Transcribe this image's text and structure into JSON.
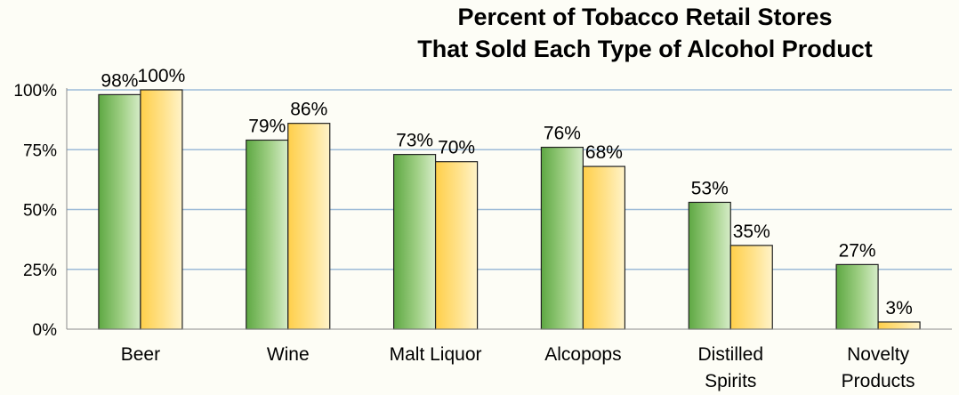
{
  "chart_data": {
    "type": "bar",
    "title_lines": [
      "Percent of Tobacco Retail Stores",
      "That Sold Each Type of Alcohol Product"
    ],
    "categories": [
      [
        "Beer"
      ],
      [
        "Wine"
      ],
      [
        "Malt Liquor"
      ],
      [
        "Alcopops"
      ],
      [
        "Distilled",
        "Spirits"
      ],
      [
        "Novelty",
        "Products"
      ]
    ],
    "series": [
      {
        "values": [
          98,
          79,
          73,
          76,
          53,
          27
        ],
        "labels": [
          "98%",
          "79%",
          "73%",
          "76%",
          "53%",
          "27%"
        ],
        "color": "#6aad4c"
      },
      {
        "values": [
          100,
          86,
          70,
          68,
          35,
          3
        ],
        "labels": [
          "100%",
          "86%",
          "70%",
          "68%",
          "35%",
          "3%"
        ],
        "color": "#ffd45a"
      }
    ],
    "y_ticks": [
      "0%",
      "25%",
      "50%",
      "75%",
      "100%"
    ],
    "ylim": [
      0,
      100
    ],
    "grid": true,
    "gridline_color": "#9dbbd8"
  }
}
